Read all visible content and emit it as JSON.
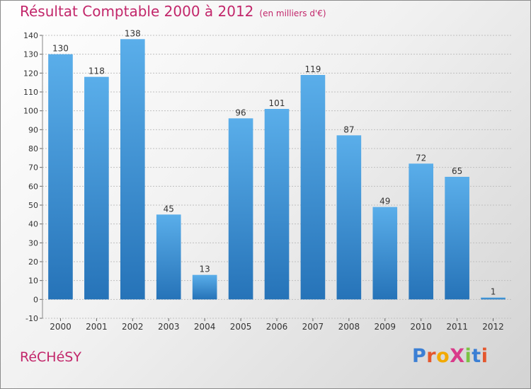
{
  "header": {
    "title": "Résultat Comptable 2000 à 2012",
    "unit": "(en milliers d'€)"
  },
  "commune": "RéCHéSY",
  "logo": {
    "text": "ProXiti",
    "letter_colors": [
      "#3b7fd4",
      "#e4572e",
      "#f2a900",
      "#d93a8a",
      "#7cc243",
      "#3b7fd4",
      "#e4572e"
    ]
  },
  "colors": {
    "title": "#c2266a",
    "bar_top": "#5aaeea",
    "bar_bottom": "#2673b8",
    "grid": "#bfbfbf"
  },
  "chart_data": {
    "type": "bar",
    "title": "Résultat Comptable 2000 à 2012",
    "xlabel": "",
    "ylabel": "",
    "categories": [
      "2000",
      "2001",
      "2002",
      "2003",
      "2004",
      "2005",
      "2006",
      "2007",
      "2008",
      "2009",
      "2010",
      "2011",
      "2012"
    ],
    "values": [
      130,
      118,
      138,
      45,
      13,
      96,
      101,
      119,
      87,
      49,
      72,
      65,
      1
    ],
    "ylim": [
      -10,
      140
    ],
    "yticks": [
      -10,
      0,
      10,
      20,
      30,
      40,
      50,
      60,
      70,
      80,
      90,
      100,
      110,
      120,
      130,
      140
    ],
    "grid": true,
    "data_labels": true
  }
}
